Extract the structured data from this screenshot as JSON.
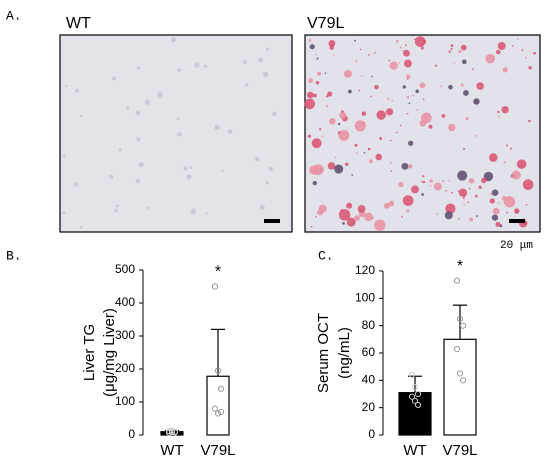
{
  "panel_labels": [
    "A.",
    "B.",
    "C."
  ],
  "images": [
    {
      "title": "WT"
    },
    {
      "title": "V79L"
    }
  ],
  "scale_bar_label": "20 μm",
  "chart_data": [
    {
      "type": "bar",
      "ylabel_lines": [
        "Liver TG",
        "(μg/mg Liver)"
      ],
      "categories": [
        "WT",
        "V79L"
      ],
      "values": [
        10,
        178
      ],
      "errors": [
        3,
        142
      ],
      "colors": [
        "#000000",
        "#ffffff"
      ],
      "points": [
        [
          7,
          9,
          10,
          12,
          13,
          8
        ],
        [
          450,
          195,
          140,
          80,
          65,
          70
        ]
      ],
      "annotation": "*",
      "annotation_category": 1,
      "ylim": [
        0,
        500
      ],
      "yticks": [
        0,
        100,
        200,
        300,
        400,
        500
      ]
    },
    {
      "type": "bar",
      "ylabel_lines": [
        "Serum OCT",
        "(ng/mL)"
      ],
      "categories": [
        "WT",
        "V79L"
      ],
      "values": [
        31,
        70
      ],
      "errors": [
        12,
        25
      ],
      "colors": [
        "#000000",
        "#ffffff"
      ],
      "points": [
        [
          44,
          35,
          30,
          28,
          25,
          22
        ],
        [
          113,
          85,
          80,
          63,
          45,
          40
        ]
      ],
      "annotation": "*",
      "annotation_category": 1,
      "ylim": [
        0,
        120
      ],
      "yticks": [
        0,
        20,
        40,
        60,
        80,
        100,
        120
      ]
    }
  ]
}
